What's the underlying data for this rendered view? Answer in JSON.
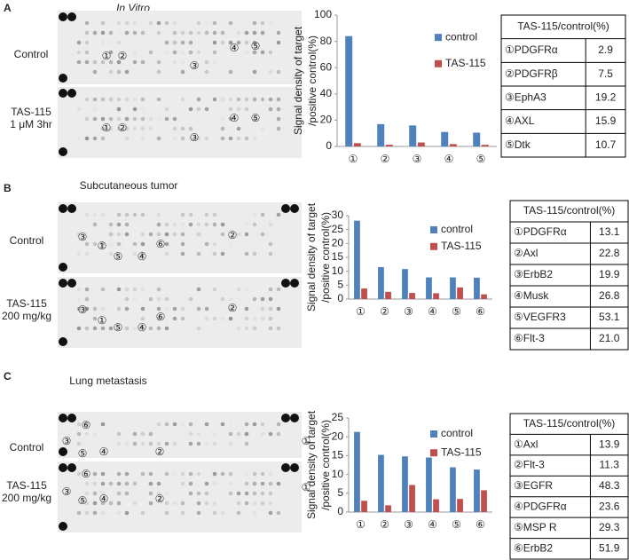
{
  "panels": [
    {
      "letter": "A",
      "blot_title": "In Vitro",
      "blots": [
        {
          "label": [
            "Control"
          ],
          "markers": [
            "①",
            "②",
            "③",
            "④",
            "⑤"
          ]
        },
        {
          "label": [
            "TAS-115",
            "1 μM 3hr"
          ],
          "markers": [
            "①",
            "②",
            "③",
            "④",
            "⑤"
          ]
        }
      ],
      "table": {
        "header": "TAS-115/control(%)",
        "rows": [
          [
            "①PDGFRα",
            "2.9"
          ],
          [
            "②PDGFRβ",
            "7.5"
          ],
          [
            "③EphA3",
            "19.2"
          ],
          [
            "④AXL",
            "15.9"
          ],
          [
            "⑤Dtk",
            "10.7"
          ]
        ]
      }
    },
    {
      "letter": "B",
      "blot_title": "Subcutaneous tumor",
      "blots": [
        {
          "label": [
            "Control"
          ],
          "markers": [
            "③",
            "①",
            "⑤",
            "④",
            "⑥",
            "②"
          ]
        },
        {
          "label": [
            "TAS-115",
            "200 mg/kg"
          ],
          "markers": [
            "③",
            "①",
            "⑤",
            "④",
            "⑥",
            "②"
          ]
        }
      ],
      "table": {
        "header": "TAS-115/control(%)",
        "rows": [
          [
            "①PDGFRα",
            "13.1"
          ],
          [
            "②Axl",
            "22.8"
          ],
          [
            "③ErbB2",
            "19.9"
          ],
          [
            "④Musk",
            "26.8"
          ],
          [
            "⑤VEGFR3",
            "53.1"
          ],
          [
            "⑥Flt-3",
            "21.0"
          ]
        ]
      }
    },
    {
      "letter": "C",
      "blot_title": "Lung metastasis",
      "blots": [
        {
          "label": [
            "Control"
          ],
          "markers": [
            "⑥",
            "③",
            "⑤",
            "④",
            "②",
            "①"
          ]
        },
        {
          "label": [
            "TAS-115",
            "200 mg/kg"
          ],
          "markers": [
            "⑥",
            "③",
            "⑤",
            "④",
            "②",
            "①"
          ]
        }
      ],
      "table": {
        "header": "TAS-115/control(%)",
        "rows": [
          [
            "①Axl",
            "13.9"
          ],
          [
            "②Flt-3",
            "11.3"
          ],
          [
            "③EGFR",
            "48.3"
          ],
          [
            "④PDGFRα",
            "23.6"
          ],
          [
            "⑤MSP R",
            "29.3"
          ],
          [
            "⑥ErbB2",
            "51.9"
          ]
        ]
      }
    }
  ],
  "chart_data": [
    {
      "type": "bar",
      "y_label": [
        "Signal density of target",
        "/positive control(%)"
      ],
      "categories": [
        "①",
        "②",
        "③",
        "④",
        "⑤"
      ],
      "series": [
        {
          "name": "control",
          "color": "#4f81bd",
          "values": [
            84,
            17,
            16,
            11,
            10.5
          ]
        },
        {
          "name": "TAS-115",
          "color": "#c0504d",
          "values": [
            2.5,
            1.3,
            3,
            1.8,
            1.2
          ]
        }
      ],
      "ylim": [
        0,
        100
      ],
      "yticks": [
        0,
        20,
        40,
        60,
        80,
        100
      ],
      "legend": "upper right"
    },
    {
      "type": "bar",
      "y_label": [
        "Signal density of target",
        "/positive control(%)"
      ],
      "categories": [
        "①",
        "②",
        "③",
        "④",
        "⑤",
        "⑥"
      ],
      "series": [
        {
          "name": "control",
          "color": "#4f81bd",
          "values": [
            28.2,
            11.5,
            10.8,
            7.8,
            7.8,
            7.7
          ]
        },
        {
          "name": "TAS-115",
          "color": "#c0504d",
          "values": [
            3.8,
            2.6,
            2.2,
            2.1,
            4.2,
            1.7
          ]
        }
      ],
      "ylim": [
        0,
        30
      ],
      "yticks": [
        0,
        5,
        10,
        15,
        20,
        25,
        30
      ],
      "legend": "upper right"
    },
    {
      "type": "bar",
      "y_label": [
        "Signal density of target",
        "/positive control(%)"
      ],
      "categories": [
        "①",
        "②",
        "③",
        "④",
        "⑤",
        "⑥"
      ],
      "series": [
        {
          "name": "control",
          "color": "#4f81bd",
          "values": [
            21.3,
            15.2,
            14.8,
            14.5,
            11.9,
            11.3
          ]
        },
        {
          "name": "TAS-115",
          "color": "#c0504d",
          "values": [
            3,
            1.8,
            7.2,
            3.4,
            3.5,
            5.8
          ]
        }
      ],
      "ylim": [
        0,
        25
      ],
      "yticks": [
        0,
        5,
        10,
        15,
        20,
        25
      ],
      "legend": "upper right"
    }
  ]
}
